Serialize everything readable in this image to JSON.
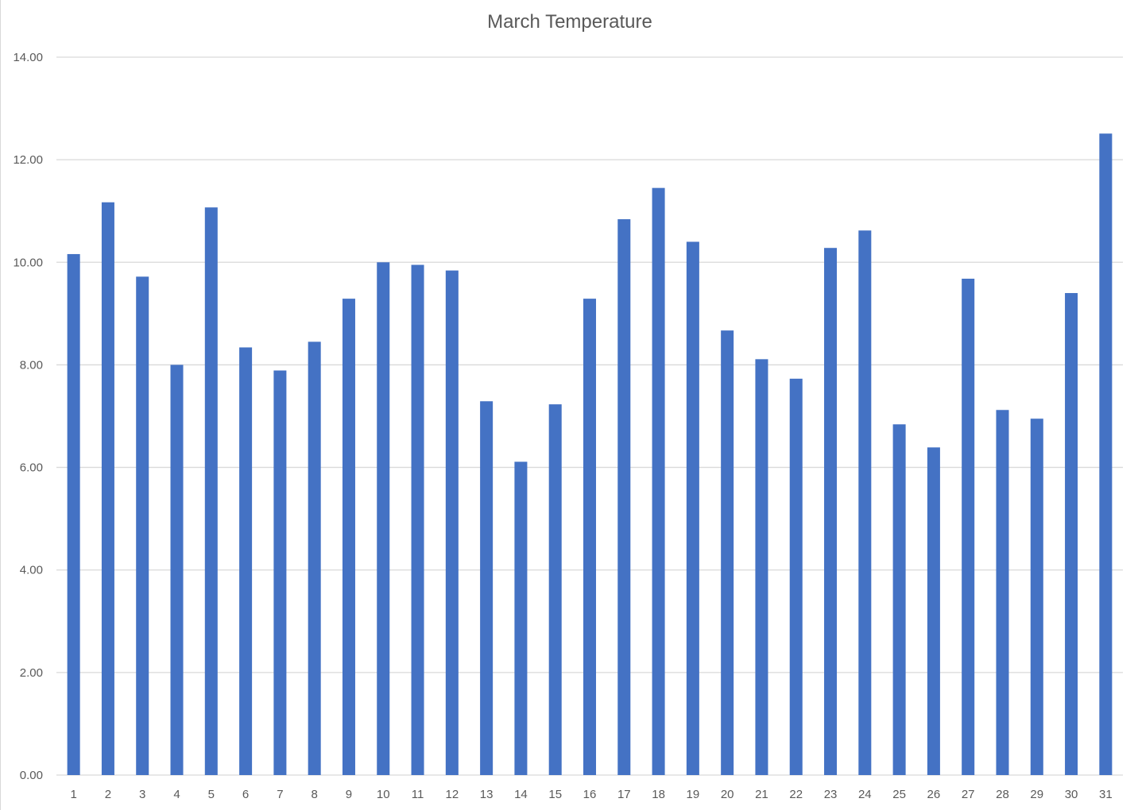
{
  "chart_data": {
    "type": "bar",
    "title": "March Temperature",
    "xlabel": "",
    "ylabel": "",
    "ylim": [
      0,
      14
    ],
    "y_ticks": [
      "0.00",
      "2.00",
      "4.00",
      "6.00",
      "8.00",
      "10.00",
      "12.00",
      "14.00"
    ],
    "grid": true,
    "legend": "none",
    "categories": [
      "1",
      "2",
      "3",
      "4",
      "5",
      "6",
      "7",
      "8",
      "9",
      "10",
      "11",
      "12",
      "13",
      "14",
      "15",
      "16",
      "17",
      "18",
      "19",
      "20",
      "21",
      "22",
      "23",
      "24",
      "25",
      "26",
      "27",
      "28",
      "29",
      "30",
      "31"
    ],
    "values": [
      10.16,
      11.17,
      9.72,
      8.0,
      11.07,
      8.34,
      7.89,
      8.45,
      9.29,
      10.0,
      9.95,
      9.84,
      7.29,
      6.11,
      7.23,
      9.29,
      10.84,
      11.45,
      10.4,
      8.67,
      8.11,
      7.73,
      10.28,
      10.62,
      6.84,
      6.39,
      9.68,
      7.12,
      6.95,
      9.4,
      12.51
    ],
    "colors": {
      "bar": "#4472c4",
      "grid": "#d9d9d9",
      "text": "#595959"
    }
  }
}
